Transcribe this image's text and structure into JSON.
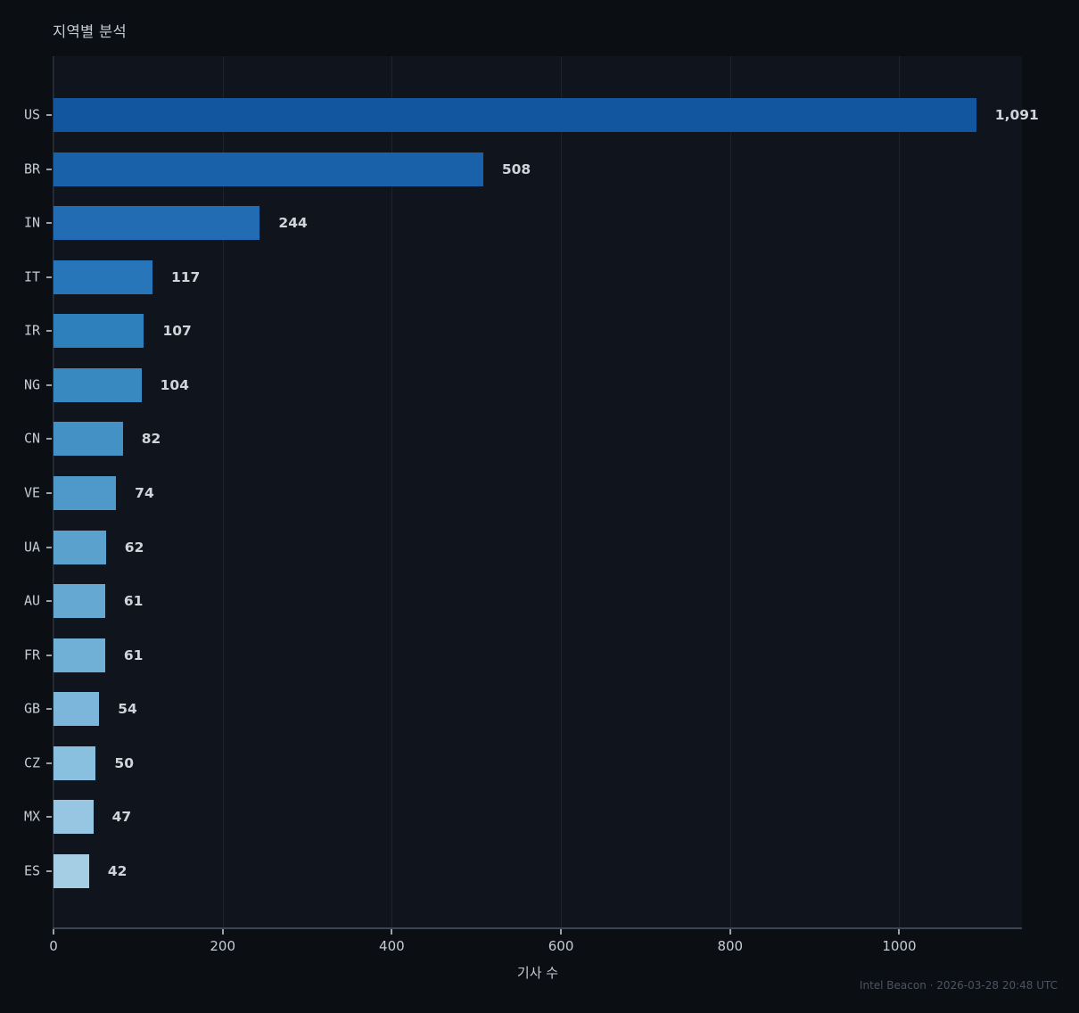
{
  "header": {
    "title": "지역별 분석"
  },
  "footer": {
    "attribution": "Intel Beacon · 2026-03-28 20:48 UTC"
  },
  "chart_data": {
    "type": "bar",
    "orientation": "horizontal",
    "title": "지역별 분석",
    "xlabel": "기사 수",
    "ylabel": "",
    "categories": [
      "US",
      "BR",
      "IN",
      "IT",
      "IR",
      "NG",
      "CN",
      "VE",
      "UA",
      "AU",
      "FR",
      "GB",
      "CZ",
      "MX",
      "ES"
    ],
    "values": [
      1091,
      508,
      244,
      117,
      107,
      104,
      82,
      74,
      62,
      61,
      61,
      54,
      50,
      47,
      42
    ],
    "value_labels": [
      "1,091",
      "508",
      "244",
      "117",
      "107",
      "104",
      "82",
      "74",
      "62",
      "61",
      "61",
      "54",
      "50",
      "47",
      "42"
    ],
    "bar_colors": [
      "#11569e",
      "#1961a9",
      "#216cb2",
      "#2676b9",
      "#2e80bd",
      "#3989c1",
      "#4491c6",
      "#4f99ca",
      "#5aa1ce",
      "#65a8d2",
      "#70b0d7",
      "#7cb7db",
      "#89bfdf",
      "#97c6e3",
      "#a5cee5"
    ],
    "xlim": [
      0,
      1145
    ],
    "xticks": [
      0,
      200,
      400,
      600,
      800,
      1000
    ],
    "grid": "vertical",
    "legend": "none",
    "colors": {
      "background": "#0b0e13",
      "plot_background": "#10141d",
      "gridline": "#1c222e",
      "spine_left": "#2b3342",
      "spine_bottom": "#3d4454",
      "tick": "#9aa3ad",
      "category_label": "#c6ccd2",
      "value_label": "#ced4da",
      "title": "#c5cbd3",
      "footer": "#4d5460"
    }
  }
}
